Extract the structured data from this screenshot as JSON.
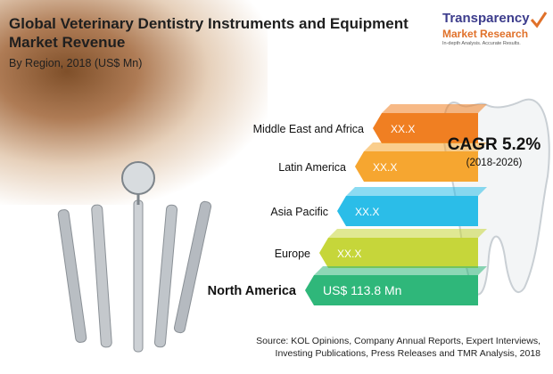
{
  "header": {
    "title": "Global Veterinary Dentistry Instruments and Equipment Market Revenue",
    "subtitle": "By Region, 2018 (US$ Mn)"
  },
  "logo": {
    "line1": "Transparency",
    "line2": "Market Research",
    "tagline": "In-depth Analysis. Accurate Results."
  },
  "cagr": {
    "value": "CAGR 5.2%",
    "period": "(2018-2026)"
  },
  "source": {
    "line1": "Source: KOL Opinions, Company Annual Reports, Expert Interviews,",
    "line2": "Investing Publications, Press Releases and TMR Analysis, 2018"
  },
  "chart_data": {
    "type": "bar",
    "orientation": "horizontal",
    "categories": [
      "Middle East and Africa",
      "Latin America",
      "Asia Pacific",
      "Europe",
      "North America"
    ],
    "labels": [
      "XX.X",
      "XX.X",
      "XX.X",
      "XX.X",
      "US$ 113.8 Mn"
    ],
    "values": [
      null,
      null,
      null,
      null,
      113.8
    ],
    "colors": [
      "#f07f22",
      "#f6a630",
      "#2bbde8",
      "#c6d63a",
      "#2fb77a"
    ],
    "highlight": "North America"
  }
}
